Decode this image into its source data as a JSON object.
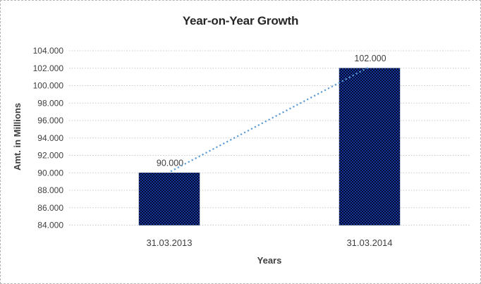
{
  "chart_data": {
    "type": "bar",
    "title": "Year-on-Year Growth",
    "xlabel": "Years",
    "ylabel": "Amt. in Millions",
    "categories": [
      "31.03.2013",
      "31.03.2014"
    ],
    "values": [
      90000,
      102000
    ],
    "value_labels": [
      "90.000",
      "102.000"
    ],
    "ylim": [
      84000,
      104000
    ],
    "ytick_step": 2000,
    "yticks": [
      {
        "value": 104000,
        "label": "104.000"
      },
      {
        "value": 102000,
        "label": "102.000"
      },
      {
        "value": 100000,
        "label": "100.000"
      },
      {
        "value": 98000,
        "label": "98.000"
      },
      {
        "value": 96000,
        "label": "96.000"
      },
      {
        "value": 94000,
        "label": "94.000"
      },
      {
        "value": 92000,
        "label": "92.000"
      },
      {
        "value": 90000,
        "label": "90.000"
      },
      {
        "value": 88000,
        "label": "88.000"
      },
      {
        "value": 86000,
        "label": "86.000"
      },
      {
        "value": 84000,
        "label": "84.000"
      }
    ],
    "grid": true,
    "legend": "none",
    "trendline": {
      "style": "dotted",
      "from_index": 0,
      "to_index": 1
    },
    "colors": {
      "bar_pattern_light": "#142f9e",
      "bar_pattern_dark": "#071027",
      "bar_average": "#16315f",
      "trendline": "#5b9bd5",
      "gridline": "#c9c9c9",
      "tick_text": "#404040",
      "data_label_text": "#3d3d3d",
      "title_text": "#262626",
      "frame_border": "#b5b5b5"
    }
  }
}
